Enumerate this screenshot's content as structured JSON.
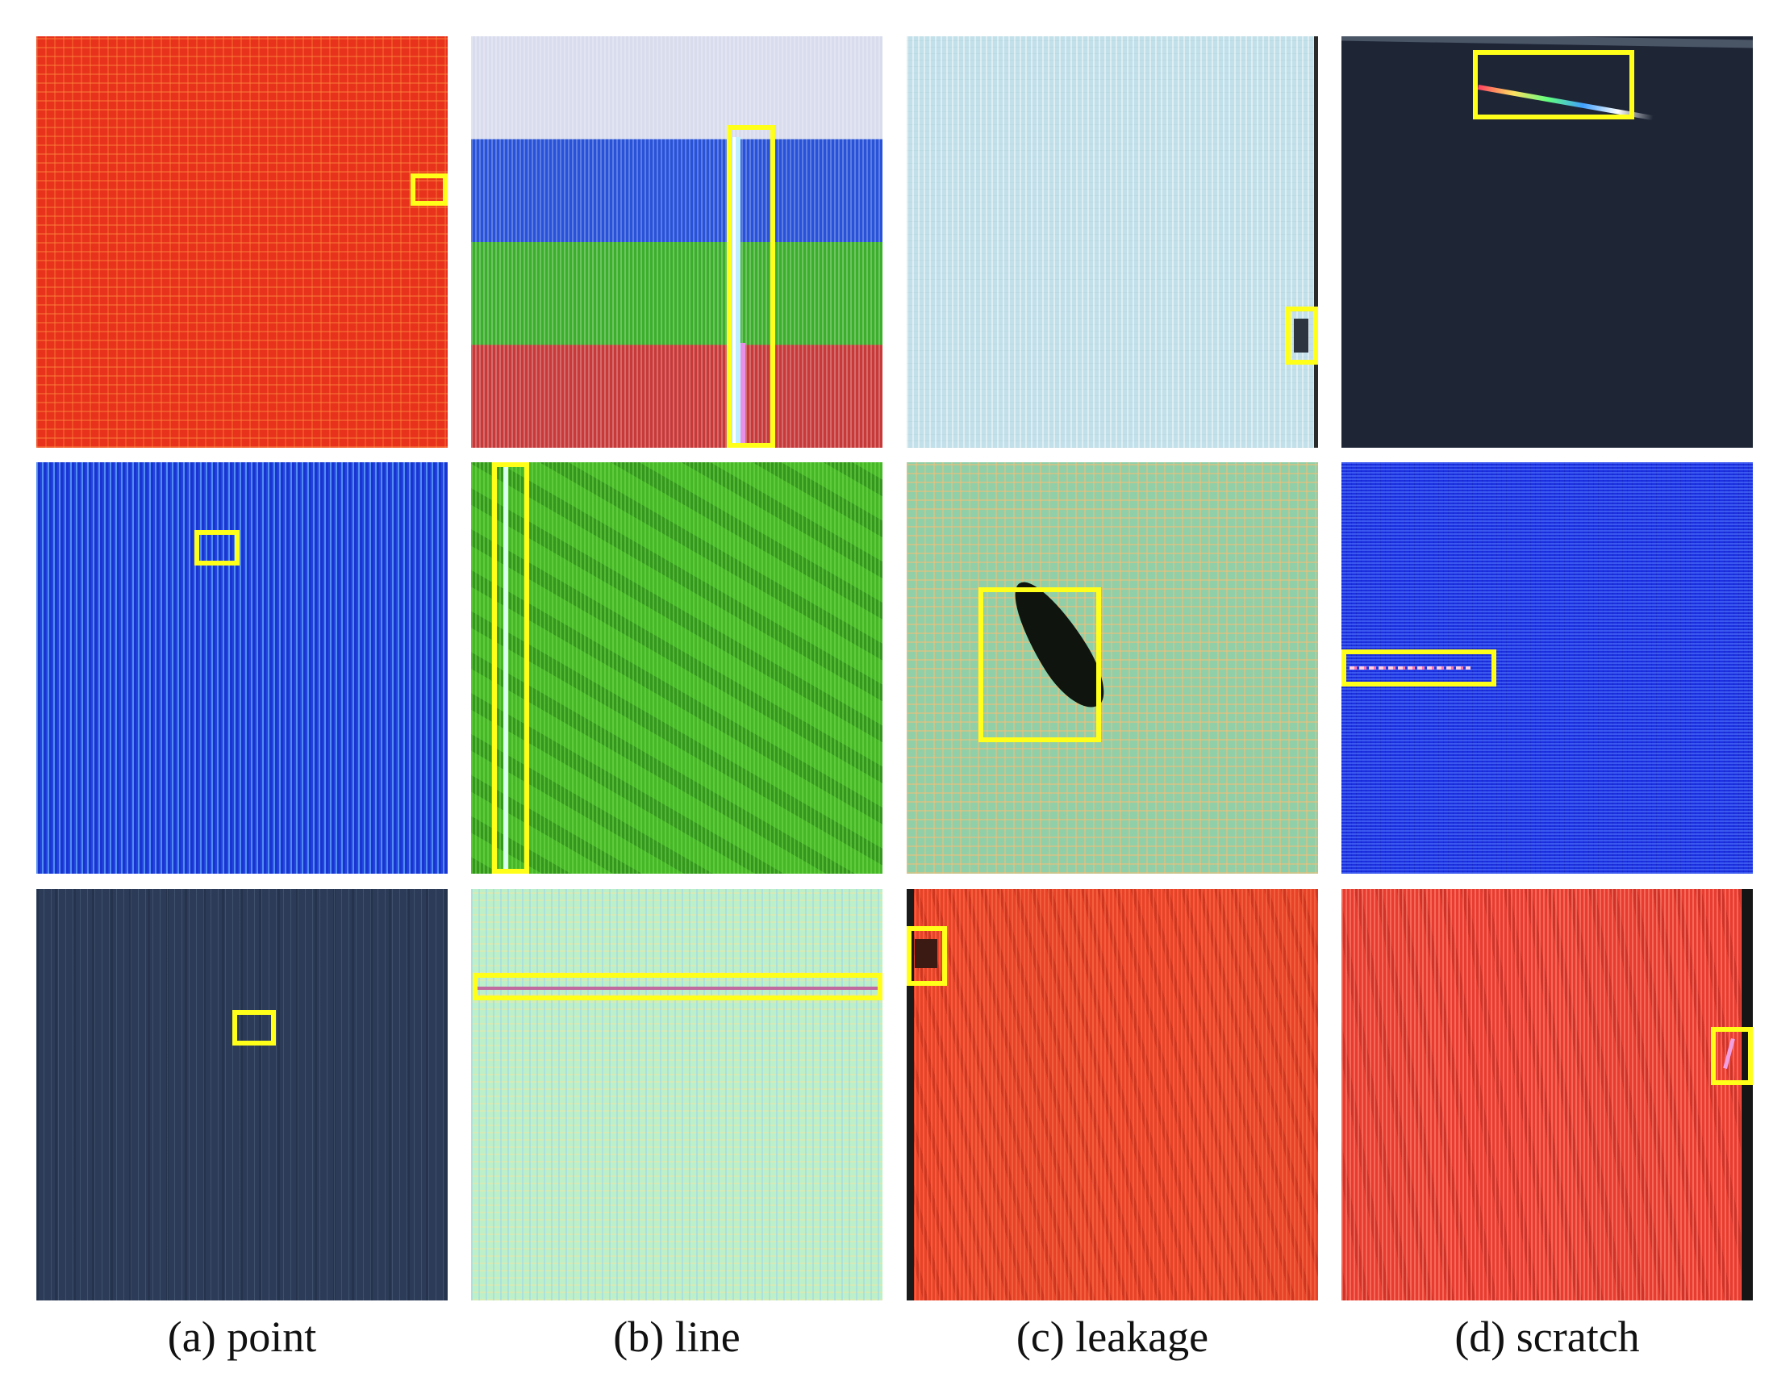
{
  "figure": {
    "columns": [
      {
        "key": "point",
        "caption": "(a) point"
      },
      {
        "key": "line",
        "caption": "(b) line"
      },
      {
        "key": "leakage",
        "caption": "(c) leakage"
      },
      {
        "key": "scratch",
        "caption": "(d) scratch"
      }
    ],
    "highlight_color": "#ffff1a",
    "panels": [
      {
        "column": "point",
        "row": 1,
        "background": "red"
      },
      {
        "column": "point",
        "row": 2,
        "background": "blue"
      },
      {
        "column": "point",
        "row": 3,
        "background": "dark-navy"
      },
      {
        "column": "line",
        "row": 1,
        "background": "color-bars"
      },
      {
        "column": "line",
        "row": 2,
        "background": "green"
      },
      {
        "column": "line",
        "row": 3,
        "background": "light-green"
      },
      {
        "column": "leakage",
        "row": 1,
        "background": "light-cyan"
      },
      {
        "column": "leakage",
        "row": 2,
        "background": "teal-grid"
      },
      {
        "column": "leakage",
        "row": 3,
        "background": "red"
      },
      {
        "column": "scratch",
        "row": 1,
        "background": "dark"
      },
      {
        "column": "scratch",
        "row": 2,
        "background": "blue"
      },
      {
        "column": "scratch",
        "row": 3,
        "background": "red"
      }
    ]
  }
}
